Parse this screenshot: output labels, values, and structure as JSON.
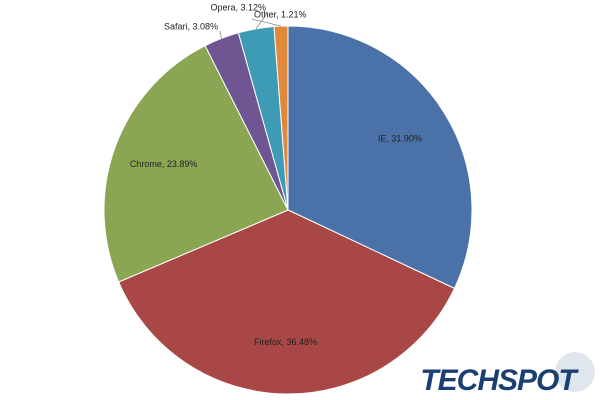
{
  "chart_data": {
    "type": "pie",
    "values": [
      31.9,
      36.48,
      23.89,
      3.08,
      3.12,
      1.21
    ],
    "value_labels": [
      "IE, 31.90%",
      "Firefox, 36.48%",
      "Chrome, 23.89%",
      "Safari, 3.08%",
      "Opera, 3.12%",
      "Other, 1.21%"
    ],
    "colors": [
      "#4a72a8",
      "#a84745",
      "#8aa653",
      "#6f5591",
      "#3d9bb5",
      "#e0893a"
    ],
    "watermark": "TECHSPOT"
  }
}
